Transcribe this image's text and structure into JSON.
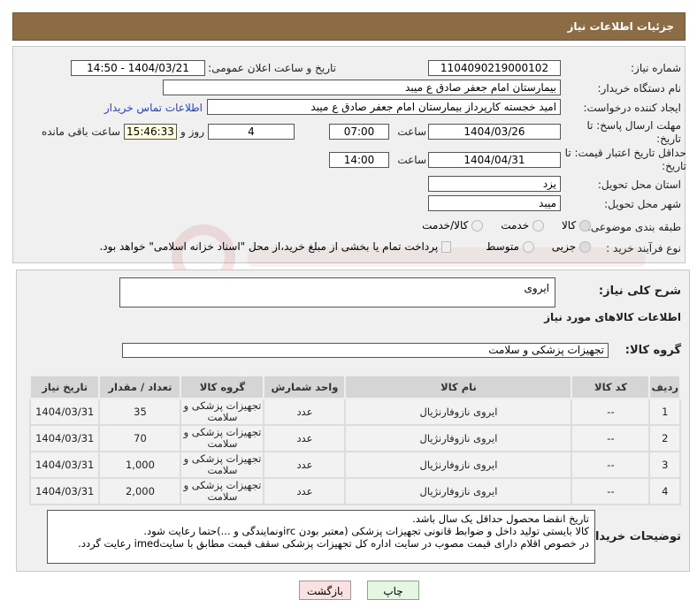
{
  "header": {
    "title": "جزئیات اطلاعات نیاز"
  },
  "form": {
    "need_number_label": "شماره نیاز:",
    "need_number": "1104090219000102",
    "announce_label": "تاریخ و ساعت اعلان عمومی:",
    "announce_value": "1404/03/21 - 14:50",
    "buyer_label": "نام دستگاه خریدار:",
    "buyer": "بیمارستان امام جعفر صادق  ع  میبد",
    "creator_label": "ایجاد کننده درخواست:",
    "creator": "امید خجسته کارپرداز بیمارستان امام جعفر صادق  ع  میبد",
    "contact_link": "اطلاعات تماس خریدار",
    "deadline_label": "مهلت ارسال پاسخ: تا تاریخ:",
    "deadline_date": "1404/03/26",
    "time_label": "ساعت",
    "deadline_time": "07:00",
    "days": "4",
    "days_label": "روز و",
    "remaining": "15:46:33",
    "remaining_label": "ساعت باقی مانده",
    "validity_label": "حداقل تاریخ اعتبار قیمت: تا تاریخ:",
    "validity_date": "1404/04/31",
    "validity_time": "14:00",
    "province_label": "استان محل تحویل:",
    "province": "یزد",
    "city_label": "شهر محل تحویل:",
    "city": "میبد",
    "category_label": "طبقه بندی موضوعی:",
    "category_options": [
      "کالا",
      "خدمت",
      "کالا/خدمت"
    ],
    "category_selected": "کالا",
    "process_label": "نوع فرآیند خرید :",
    "process_options": [
      "جزیی",
      "متوسط"
    ],
    "process_selected": "جزیی",
    "payment_note": "پرداخت تمام یا بخشی از مبلغ خرید،از محل \"اسناد خزانه اسلامی\" خواهد بود."
  },
  "details": {
    "description_label": "شرح کلی نیاز:",
    "description": "ایروی",
    "items_title": "اطلاعات کالاهای مورد نیاز",
    "group_label": "گروه کالا:",
    "group": "تجهیزات پزشکی و سلامت",
    "columns": [
      "ردیف",
      "کد کالا",
      "نام کالا",
      "واحد شمارش",
      "گروه کالا",
      "تعداد / مقدار",
      "تاریخ نیاز"
    ],
    "rows": [
      [
        "1",
        "--",
        "ایروی نازوفارنژیال",
        "عدد",
        "تجهیزات پزشکی و سلامت",
        "35",
        "1404/03/31"
      ],
      [
        "2",
        "--",
        "ایروی نازوفارنژیال",
        "عدد",
        "تجهیزات پزشکی و سلامت",
        "70",
        "1404/03/31"
      ],
      [
        "3",
        "--",
        "ایروی نازوفارنژیال",
        "عدد",
        "تجهیزات پزشکی و سلامت",
        "1,000",
        "1404/03/31"
      ],
      [
        "4",
        "--",
        "ایروی نازوفارنژیال",
        "عدد",
        "تجهیزات پزشکی و سلامت",
        "2,000",
        "1404/03/31"
      ]
    ],
    "notes_label": "توضیحات خریدار:",
    "notes": [
      "تاریخ انقضا محصول حداقل یک سال باشد.",
      "کالا بایستی تولید داخل و ضوابط قانونی تجهیزات پزشکی (معتبر بودن ircونمایندگی و ...)حتما رعایت شود.",
      "در خصوص اقلام دارای قیمت مصوب در سایت اداره کل تجهیزات پزشکی سقف قیمت مطابق با سایتimed رعایت گردد."
    ]
  },
  "buttons": {
    "print": "چاپ",
    "back": "بازگشت"
  },
  "watermark": "AriaTender.net"
}
